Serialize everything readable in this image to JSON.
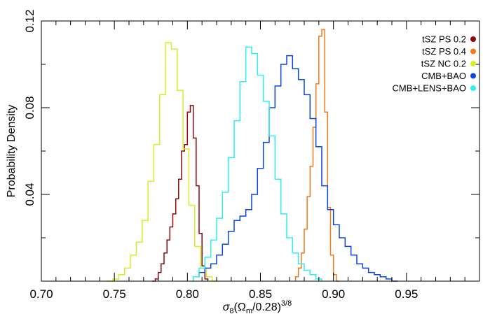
{
  "chart_data": {
    "type": "line",
    "xlabel": "σ8(Ωm/0.28)3/8",
    "xlabel_parts": {
      "sigma": "σ",
      "sigma_sub": "8",
      "open": "(Ω",
      "omega_sub": "m",
      "mid": "/0.28)",
      "power": "3/8"
    },
    "ylabel": "Probability Density",
    "xlim": [
      0.7,
      1.0
    ],
    "ylim": [
      0.0,
      0.12
    ],
    "x_ticks": [
      0.7,
      0.75,
      0.8,
      0.85,
      0.9,
      0.95
    ],
    "x_tick_labels": [
      "0.70",
      "0.75",
      "0.80",
      "0.85",
      "0.90",
      "0.95"
    ],
    "x_minor_step": 0.01,
    "y_ticks": [
      0.04,
      0.08,
      0.12
    ],
    "y_tick_labels": [
      "0.04",
      "0.08",
      "0.12"
    ],
    "y_minor_step": 0.02,
    "legend_position": "top-right",
    "grid": false,
    "series": [
      {
        "name": "tSZ PS 0.2",
        "color": "#8b0a0a",
        "x": [
          0.777,
          0.779,
          0.781,
          0.783,
          0.785,
          0.787,
          0.789,
          0.791,
          0.793,
          0.795,
          0.797,
          0.799,
          0.801,
          0.803,
          0.805,
          0.807,
          0.809,
          0.811,
          0.813
        ],
        "values": [
          0.0,
          0.001,
          0.004,
          0.008,
          0.013,
          0.019,
          0.025,
          0.031,
          0.038,
          0.047,
          0.06,
          0.063,
          0.078,
          0.081,
          0.066,
          0.044,
          0.022,
          0.007,
          0.001
        ]
      },
      {
        "name": "tSZ PS 0.4",
        "color": "#f47a1c",
        "x": [
          0.875,
          0.877,
          0.879,
          0.881,
          0.883,
          0.885,
          0.887,
          0.889,
          0.891,
          0.893,
          0.895,
          0.897,
          0.899,
          0.901,
          0.903
        ],
        "values": [
          0.002,
          0.006,
          0.013,
          0.024,
          0.039,
          0.053,
          0.071,
          0.091,
          0.113,
          0.116,
          0.078,
          0.034,
          0.012,
          0.003,
          0.0
        ]
      },
      {
        "name": "tSZ NC 0.2",
        "color": "#d8ee26",
        "x": [
          0.747,
          0.751,
          0.755,
          0.759,
          0.763,
          0.767,
          0.771,
          0.775,
          0.779,
          0.783,
          0.787,
          0.791,
          0.795,
          0.799,
          0.803,
          0.807,
          0.811,
          0.815,
          0.819
        ],
        "values": [
          0.0,
          0.001,
          0.003,
          0.006,
          0.012,
          0.018,
          0.028,
          0.046,
          0.063,
          0.086,
          0.11,
          0.107,
          0.088,
          0.061,
          0.035,
          0.016,
          0.006,
          0.002,
          0.0
        ]
      },
      {
        "name": "CMB+BAO",
        "color": "#0a46e6",
        "x": [
          0.806,
          0.81,
          0.814,
          0.818,
          0.822,
          0.826,
          0.83,
          0.834,
          0.838,
          0.842,
          0.846,
          0.85,
          0.854,
          0.858,
          0.862,
          0.866,
          0.87,
          0.874,
          0.878,
          0.882,
          0.886,
          0.89,
          0.894,
          0.898,
          0.902,
          0.906,
          0.91,
          0.914,
          0.918,
          0.922,
          0.926,
          0.93,
          0.934,
          0.938,
          0.942
        ],
        "values": [
          0.002,
          0.004,
          0.006,
          0.008,
          0.012,
          0.017,
          0.023,
          0.028,
          0.03,
          0.033,
          0.04,
          0.052,
          0.064,
          0.08,
          0.09,
          0.1,
          0.104,
          0.098,
          0.093,
          0.086,
          0.075,
          0.062,
          0.044,
          0.033,
          0.026,
          0.02,
          0.016,
          0.012,
          0.008,
          0.006,
          0.004,
          0.003,
          0.002,
          0.001,
          0.0
        ]
      },
      {
        "name": "CMB+LENS+BAO",
        "color": "#2ef0f0",
        "x": [
          0.806,
          0.81,
          0.814,
          0.818,
          0.822,
          0.826,
          0.83,
          0.834,
          0.838,
          0.842,
          0.846,
          0.85,
          0.854,
          0.858,
          0.862,
          0.866,
          0.87,
          0.874,
          0.878,
          0.882,
          0.886,
          0.89
        ],
        "values": [
          0.002,
          0.006,
          0.011,
          0.019,
          0.029,
          0.041,
          0.057,
          0.074,
          0.092,
          0.108,
          0.105,
          0.095,
          0.083,
          0.067,
          0.047,
          0.031,
          0.02,
          0.013,
          0.008,
          0.005,
          0.003,
          0.001
        ]
      }
    ]
  }
}
